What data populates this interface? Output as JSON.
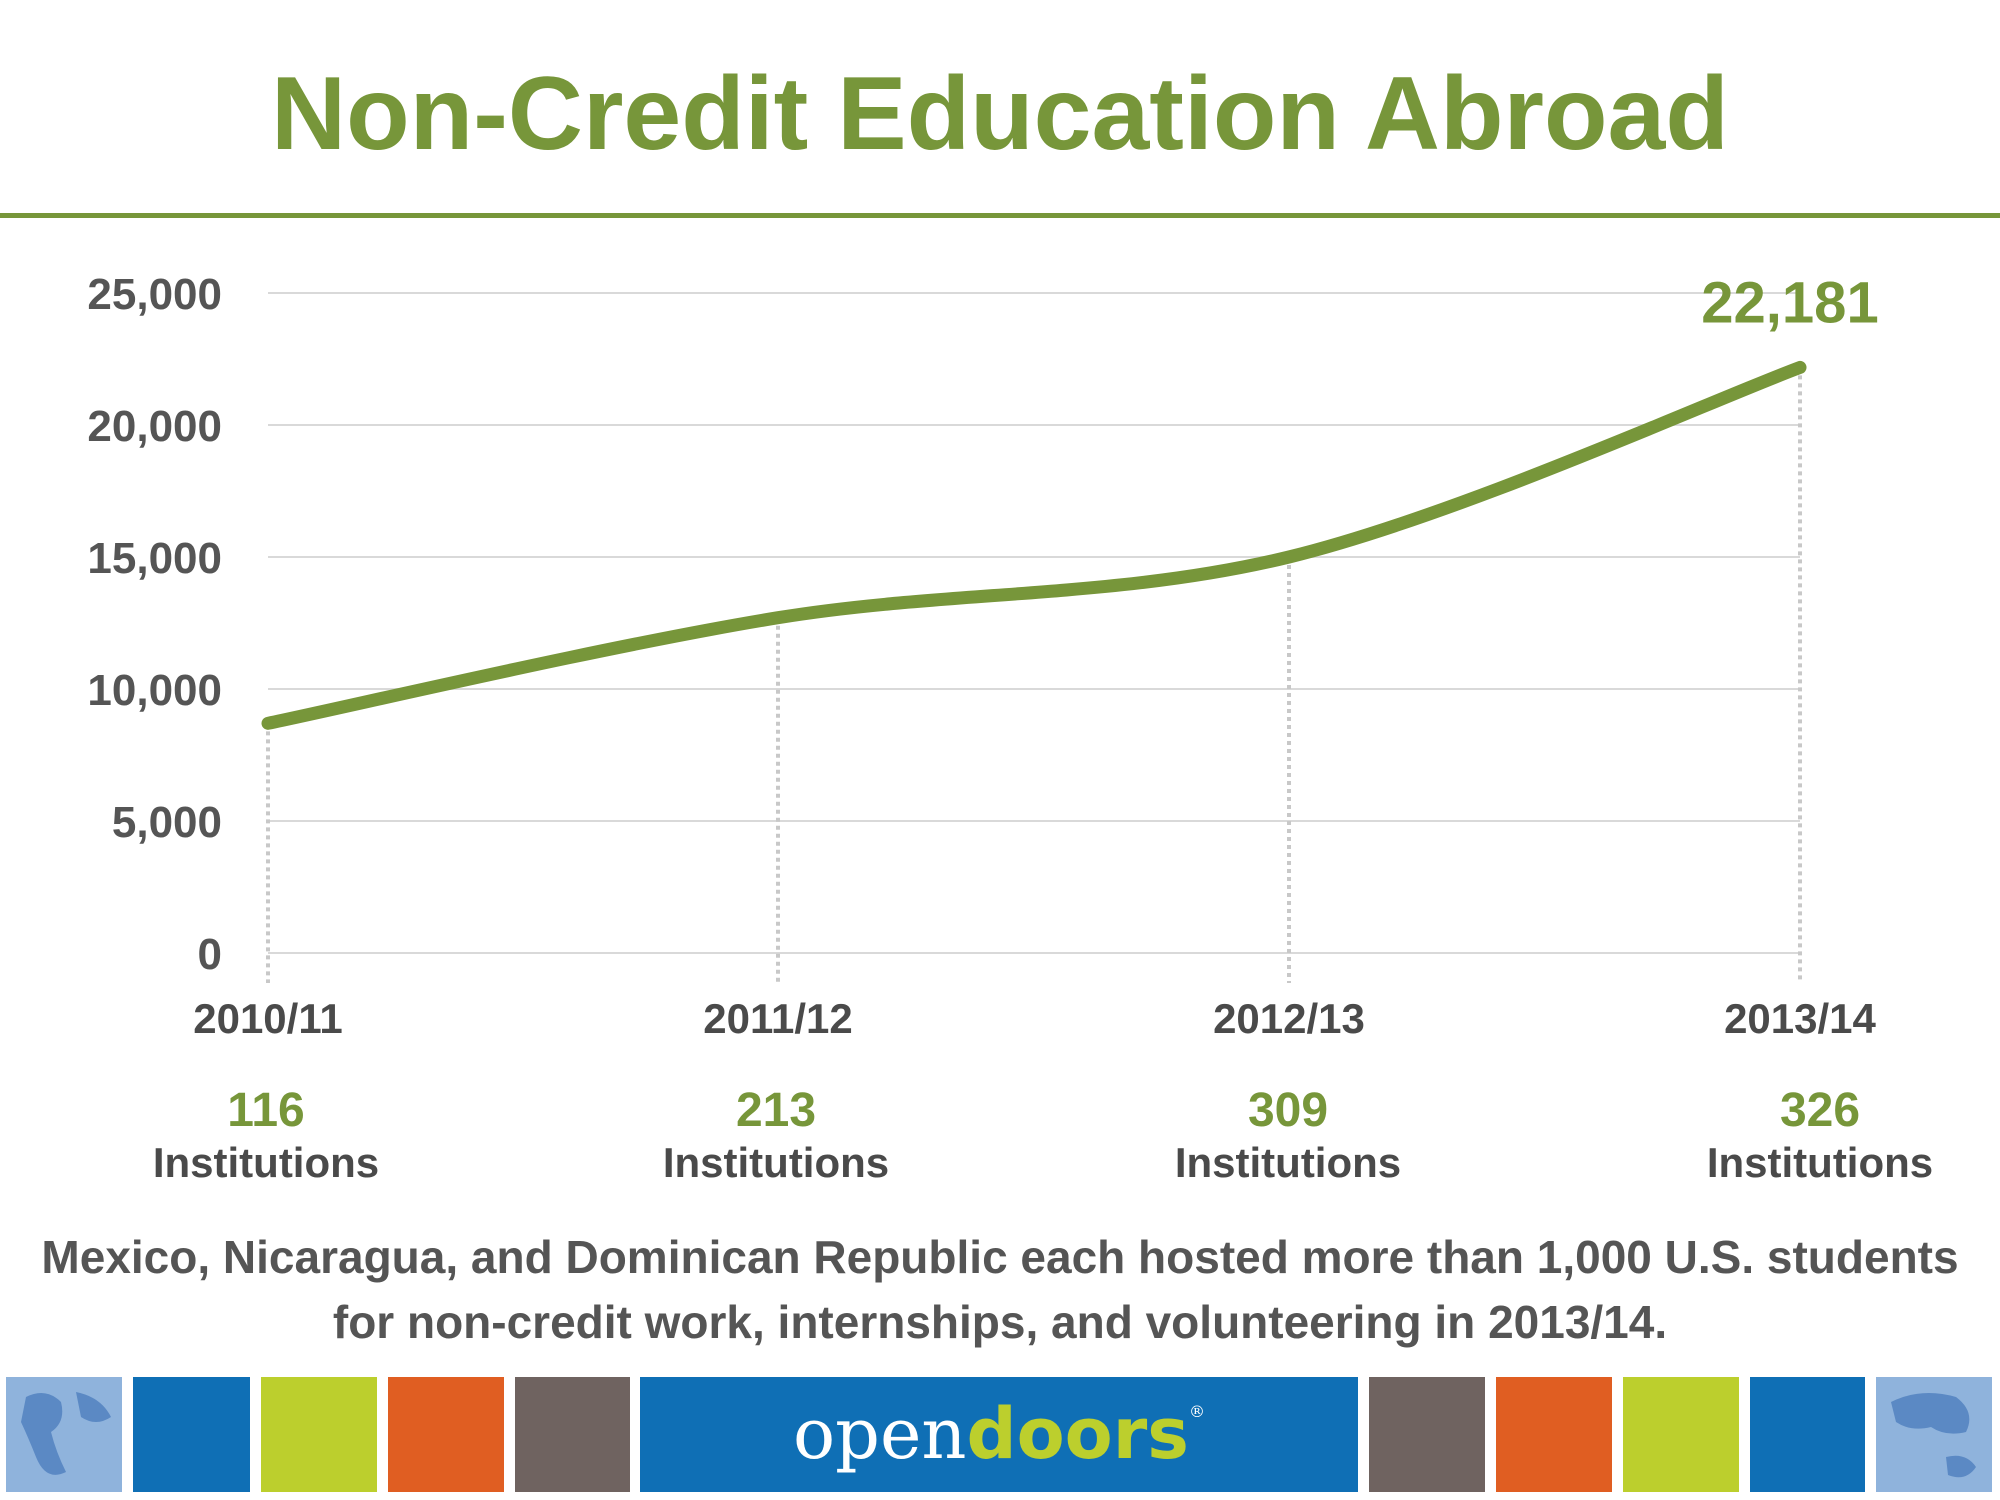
{
  "slide": {
    "title": "Non-Credit Education Abroad",
    "caption": "Mexico, Nicaragua, and Dominican Republic each hosted more than 1,000 U.S. students for non-credit work, internships, and volunteering in 2013/14."
  },
  "colors": {
    "accent": "#77963a",
    "text": "#555555",
    "footer_blue": "#0f6fb5",
    "footer_green": "#bccf2d",
    "footer_orange": "#e05e22",
    "footer_gray": "#6f6360"
  },
  "chart_data": {
    "type": "line",
    "categories": [
      "2010/11",
      "2011/12",
      "2012/13",
      "2013/14"
    ],
    "series": [
      {
        "values": [
          8700,
          12700,
          15000,
          22181
        ]
      }
    ],
    "ylim": [
      0,
      25000
    ],
    "yticks": [
      "0",
      "5,000",
      "10,000",
      "15,000",
      "20,000",
      "25,000"
    ],
    "data_labels": [
      {
        "category": "2013/14",
        "text": "22,181"
      }
    ],
    "grid": true,
    "legend": "none",
    "institutions": [
      {
        "count": "116",
        "label": "Institutions"
      },
      {
        "count": "213",
        "label": "Institutions"
      },
      {
        "count": "309",
        "label": "Institutions"
      },
      {
        "count": "326",
        "label": "Institutions"
      }
    ]
  },
  "footer": {
    "logo_open": "open",
    "logo_doors": "doors",
    "logo_mark": "®",
    "tiles": [
      "globe-americas-icon",
      "blue",
      "green",
      "orange",
      "gray",
      "logo",
      "gray",
      "orange",
      "green",
      "blue",
      "globe-asia-icon"
    ]
  }
}
